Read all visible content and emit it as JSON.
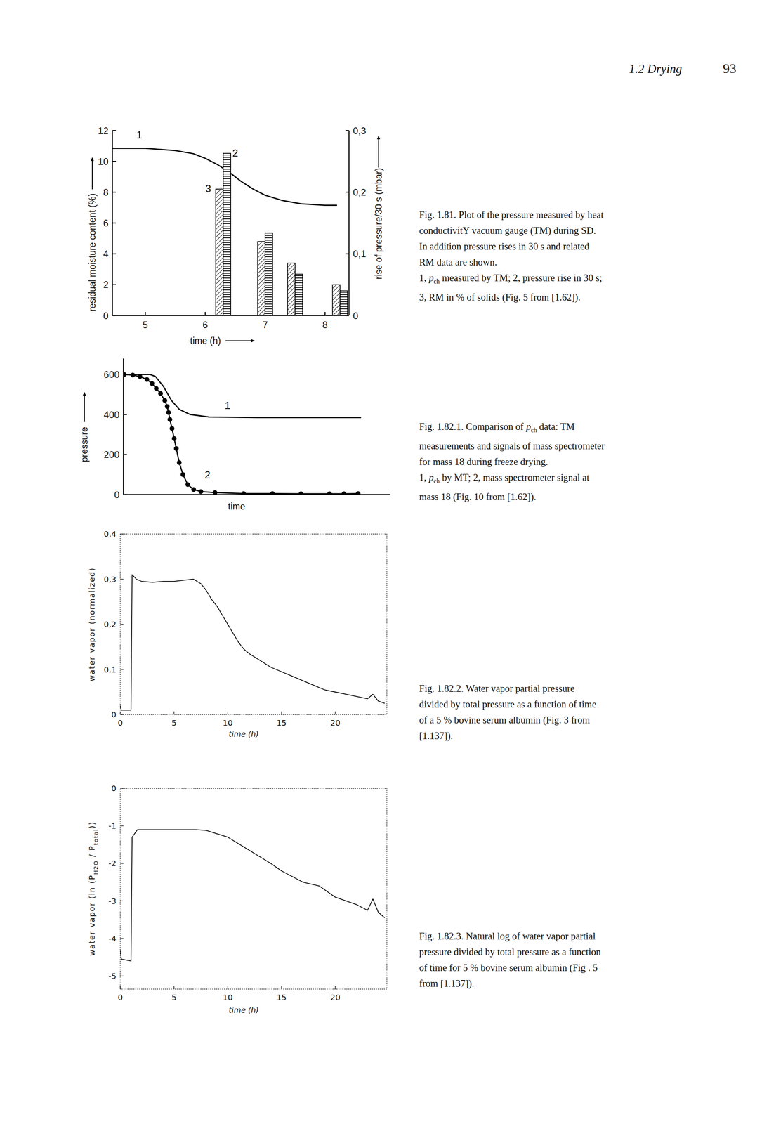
{
  "header": {
    "section": "1.2 Drying",
    "page": "93"
  },
  "chart_data": [
    {
      "type": "line",
      "xlabel": "time (h)",
      "ylabel": "residual moisture content (%)",
      "y2label": "rise of pressure/30 s (mbar)",
      "xlim": [
        4.45,
        8.4
      ],
      "xticks": [
        5,
        6,
        7,
        8
      ],
      "ylim": [
        0,
        12
      ],
      "yticks": [
        0,
        2,
        4,
        6,
        8,
        10,
        12
      ],
      "y2lim": [
        0,
        0.3
      ],
      "y2ticks": [
        0,
        {
          "value": 0.1,
          "label": "0,1"
        },
        {
          "value": 0.2,
          "label": "0,2"
        },
        {
          "value": 0.3,
          "label": "0,3"
        }
      ],
      "series": [
        {
          "type": "line",
          "color": "#000000",
          "line_style": "solid",
          "x": [
            4.45,
            5,
            5.5,
            5.8,
            6,
            6.2,
            6.4,
            6.6,
            6.8,
            7,
            7.3,
            7.6,
            8,
            8.2
          ],
          "values": [
            10.85,
            10.85,
            10.7,
            10.5,
            10.2,
            9.8,
            9.3,
            8.7,
            8.2,
            7.8,
            7.45,
            7.25,
            7.15,
            7.15
          ]
        },
        {
          "type": "bar",
          "color": "#000000",
          "x": [
            6.3,
            7.0,
            7.5,
            8.25
          ],
          "values": [
            8.2,
            4.8,
            3.4,
            2.0
          ]
        },
        {
          "type": "bar",
          "axis": "y2",
          "color": "#000000",
          "x": [
            6.3,
            7.0,
            7.5,
            8.25
          ],
          "values": [
            0.263,
            0.134,
            0.067,
            0.04
          ]
        }
      ],
      "annotations": [
        {
          "text": "1",
          "x": 4.9,
          "y": 11.5
        },
        {
          "text": "2",
          "x": 6.5,
          "y": 10.3
        },
        {
          "text": "3",
          "x": 6.05,
          "y": 8.0
        }
      ]
    },
    {
      "type": "line",
      "xlabel": "time",
      "ylabel": "pressure",
      "tick_labels": "y",
      "xlim": [
        0,
        10
      ],
      "ylim": [
        0,
        680
      ],
      "yticks": [
        0,
        200,
        400,
        600
      ],
      "series": [
        {
          "color": "#000000",
          "line_style": "solid",
          "marker": "none",
          "x": [
            0,
            1.0,
            1.2,
            1.5,
            1.8,
            2.1,
            2.5,
            3.2,
            5,
            8.9
          ],
          "values": [
            600,
            600,
            590,
            540,
            470,
            425,
            400,
            388,
            385,
            385
          ]
        },
        {
          "color": "#000000",
          "line_style": "solid",
          "marker": "circle",
          "x": [
            0.03,
            0.35,
            0.62,
            0.88,
            1.07,
            1.23,
            1.39,
            1.55,
            1.64,
            1.69,
            1.74,
            1.82,
            1.9,
            1.98,
            2.09,
            2.23,
            2.41,
            2.63,
            2.9,
            3.43,
            4.5,
            5.58,
            6.65,
            7.72,
            8.26,
            8.79
          ],
          "values": [
            600,
            597,
            590,
            575,
            555,
            530,
            505,
            470,
            440,
            410,
            375,
            330,
            280,
            230,
            160,
            100,
            50,
            25,
            15,
            10,
            5,
            5,
            4,
            4,
            4,
            5
          ]
        }
      ],
      "annotations": [
        {
          "text": "1",
          "x": 3.9,
          "y": 428
        },
        {
          "text": "2",
          "x": 3.15,
          "y": 80
        }
      ]
    },
    {
      "type": "line",
      "xlabel": "time (h)",
      "ylabel": "water vapor (normalized)",
      "xlim": [
        0,
        24.8
      ],
      "xticks": [
        0,
        5,
        10,
        15,
        20
      ],
      "ylim": [
        0,
        0.4
      ],
      "yticks": [
        0,
        {
          "value": 0.1,
          "label": "0,1"
        },
        {
          "value": 0.2,
          "label": "0,2"
        },
        {
          "value": 0.3,
          "label": "0,3"
        },
        {
          "value": 0.4,
          "label": "0,4"
        }
      ],
      "series": [
        {
          "color": "#000000",
          "line_style": "solid",
          "x": [
            0,
            0.1,
            1.0,
            1.1,
            1.5,
            2,
            3,
            4,
            5,
            6,
            6.8,
            7.5,
            8,
            8.5,
            9,
            9.5,
            10,
            10.5,
            11,
            11.5,
            12,
            13,
            14,
            15,
            16,
            17,
            18,
            19,
            20,
            21,
            22,
            23,
            23.5,
            24,
            24.6
          ],
          "values": [
            0.02,
            0.01,
            0.01,
            0.31,
            0.3,
            0.295,
            0.293,
            0.295,
            0.295,
            0.298,
            0.3,
            0.29,
            0.275,
            0.255,
            0.24,
            0.22,
            0.2,
            0.18,
            0.16,
            0.145,
            0.135,
            0.12,
            0.105,
            0.095,
            0.085,
            0.075,
            0.065,
            0.055,
            0.05,
            0.045,
            0.04,
            0.035,
            0.045,
            0.03,
            0.025
          ]
        }
      ]
    },
    {
      "type": "line",
      "xlabel": "time (h)",
      "ylabel": [
        "water vapor (ln (",
        {
          "t": "P",
          "sub": "H2O"
        },
        " / ",
        {
          "t": "P",
          "sub": "total"
        },
        "))"
      ],
      "xlim": [
        0,
        24.8
      ],
      "xticks": [
        0,
        5,
        10,
        15,
        20
      ],
      "ylim": [
        -5.35,
        0
      ],
      "yticks": [
        0,
        -1,
        -2,
        -3,
        -4,
        -5
      ],
      "series": [
        {
          "color": "#000000",
          "line_style": "solid",
          "x": [
            0,
            0.1,
            1.0,
            1.1,
            1.6,
            3,
            5,
            7,
            8,
            10,
            12,
            14,
            15,
            17,
            18.5,
            20,
            22,
            23,
            23.5,
            24,
            24.6
          ],
          "values": [
            -4.3,
            -4.55,
            -4.6,
            -1.3,
            -1.1,
            -1.1,
            -1.1,
            -1.1,
            -1.12,
            -1.3,
            -1.65,
            -2.0,
            -2.2,
            -2.5,
            -2.6,
            -2.9,
            -3.1,
            -3.25,
            -2.95,
            -3.3,
            -3.45
          ]
        }
      ]
    }
  ],
  "captions": [
    [
      [
        "Fig. 1.81. Plot of the pressure measured by heat conductivitY vacuum gauge (TM) during SD. In addition pressure rises in 30 s and related RM data are shown."
      ],
      [
        "1, ",
        {
          "t": "p",
          "sub": "ch"
        },
        " measured by TM; 2, pressure rise in 30 s; 3, RM in % of solids (Fig. 5 from [1.62])."
      ]
    ],
    [
      [
        "Fig. 1.82.1. Comparison of ",
        {
          "t": "p",
          "sub": "ch"
        },
        " data: TM measurements and signals of mass spectrometer for mass 18 during freeze drying."
      ],
      [
        "1, ",
        {
          "t": "p",
          "sub": "ch"
        },
        " by MT; 2, mass spectrometer signal at mass 18 (Fig. 10 from [1.62])."
      ]
    ],
    [
      [
        "Fig. 1.82.2. Water vapor partial pressure divided by total pressure as a function of time of a 5 % bovine serum albumin (Fig. 3 from [1.137])."
      ]
    ],
    [
      [
        "Fig. 1.82.3. Natural log of water vapor partial pressure divided by total pressure as a function of time for 5 % bovine serum albumin (Fig . 5 from [1.137])."
      ]
    ]
  ]
}
